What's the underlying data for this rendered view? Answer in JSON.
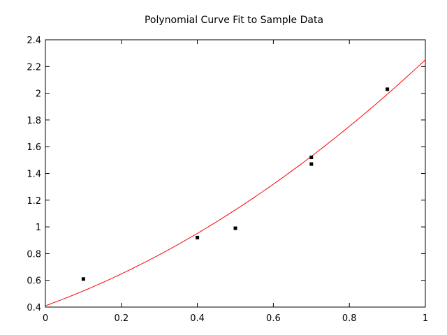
{
  "chart_data": {
    "type": "scatter",
    "title": "Polynomial Curve Fit to Sample Data",
    "xlabel": "",
    "ylabel": "",
    "xlim": [
      0,
      1
    ],
    "ylim": [
      0.4,
      2.4
    ],
    "x_ticks": [
      "0",
      "0.2",
      "0.4",
      "0.6",
      "0.8",
      "1"
    ],
    "y_ticks": [
      "0.4",
      "0.6",
      "0.8",
      "1",
      "1.2",
      "1.4",
      "1.6",
      "1.8",
      "2",
      "2.2",
      "2.4"
    ],
    "grid": false,
    "legend": "none",
    "series": [
      {
        "kind": "points",
        "color": "#000000",
        "points": [
          {
            "x": 0.1,
            "y": 0.61
          },
          {
            "x": 0.4,
            "y": 0.92
          },
          {
            "x": 0.5,
            "y": 0.99
          },
          {
            "x": 0.7,
            "y": 1.52
          },
          {
            "x": 0.7,
            "y": 1.47
          },
          {
            "x": 0.9,
            "y": 2.03
          }
        ]
      },
      {
        "kind": "fit-curve",
        "color": "#ff0000",
        "polynomial_coefficients": [
          0.41,
          1.03,
          0.81
        ]
      }
    ]
  }
}
